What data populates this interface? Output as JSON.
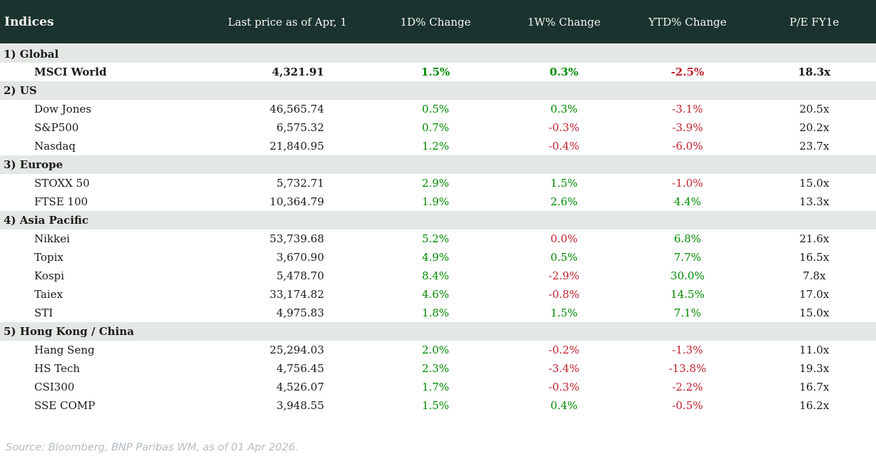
{
  "header": {
    "columns": [
      "Indices",
      "Last price as of Apr, 1",
      "1D% Change",
      "1W% Change",
      "YTD% Change",
      "P/E FY1e"
    ]
  },
  "sections": [
    {
      "label": "1) Global",
      "rows": [
        {
          "name": "MSCI World",
          "bold": true,
          "price": "4,321.91",
          "changes": [
            {
              "v": "1.5%",
              "c": "pos"
            },
            {
              "v": "0.3%",
              "c": "pos"
            },
            {
              "v": "-2.5%",
              "c": "neg"
            }
          ],
          "pe": "18.3x"
        }
      ]
    },
    {
      "label": "2) US",
      "rows": [
        {
          "name": "Dow Jones",
          "bold": false,
          "price": "46,565.74",
          "changes": [
            {
              "v": "0.5%",
              "c": "pos"
            },
            {
              "v": "0.3%",
              "c": "pos"
            },
            {
              "v": "-3.1%",
              "c": "neg"
            }
          ],
          "pe": "20.5x"
        },
        {
          "name": "S&P500",
          "bold": false,
          "price": "6,575.32",
          "changes": [
            {
              "v": "0.7%",
              "c": "pos"
            },
            {
              "v": "-0.3%",
              "c": "neg"
            },
            {
              "v": "-3.9%",
              "c": "neg"
            }
          ],
          "pe": "20.2x"
        },
        {
          "name": "Nasdaq",
          "bold": false,
          "price": "21,840.95",
          "changes": [
            {
              "v": "1.2%",
              "c": "pos"
            },
            {
              "v": "-0.4%",
              "c": "neg"
            },
            {
              "v": "-6.0%",
              "c": "neg"
            }
          ],
          "pe": "23.7x"
        }
      ]
    },
    {
      "label": "3) Europe",
      "rows": [
        {
          "name": "STOXX 50",
          "bold": false,
          "price": "5,732.71",
          "changes": [
            {
              "v": "2.9%",
              "c": "pos"
            },
            {
              "v": "1.5%",
              "c": "pos"
            },
            {
              "v": "-1.0%",
              "c": "neg"
            }
          ],
          "pe": "15.0x"
        },
        {
          "name": "FTSE 100",
          "bold": false,
          "price": "10,364.79",
          "changes": [
            {
              "v": "1.9%",
              "c": "pos"
            },
            {
              "v": "2.6%",
              "c": "pos"
            },
            {
              "v": "4.4%",
              "c": "pos"
            }
          ],
          "pe": "13.3x"
        }
      ]
    },
    {
      "label": "4) Asia Pacific",
      "rows": [
        {
          "name": "Nikkei",
          "bold": false,
          "price": "53,739.68",
          "changes": [
            {
              "v": "5.2%",
              "c": "pos"
            },
            {
              "v": "0.0%",
              "c": "neg"
            },
            {
              "v": "6.8%",
              "c": "pos"
            }
          ],
          "pe": "21.6x"
        },
        {
          "name": "Topix",
          "bold": false,
          "price": "3,670.90",
          "changes": [
            {
              "v": "4.9%",
              "c": "pos"
            },
            {
              "v": "0.5%",
              "c": "pos"
            },
            {
              "v": "7.7%",
              "c": "pos"
            }
          ],
          "pe": "16.5x"
        },
        {
          "name": "Kospi",
          "bold": false,
          "price": "5,478.70",
          "changes": [
            {
              "v": "8.4%",
              "c": "pos"
            },
            {
              "v": "-2.9%",
              "c": "neg"
            },
            {
              "v": "30.0%",
              "c": "pos"
            }
          ],
          "pe": "7.8x"
        },
        {
          "name": "Taiex",
          "bold": false,
          "price": "33,174.82",
          "changes": [
            {
              "v": "4.6%",
              "c": "pos"
            },
            {
              "v": "-0.8%",
              "c": "neg"
            },
            {
              "v": "14.5%",
              "c": "pos"
            }
          ],
          "pe": "17.0x"
        },
        {
          "name": "STI",
          "bold": false,
          "price": "4,975.83",
          "changes": [
            {
              "v": "1.8%",
              "c": "pos"
            },
            {
              "v": "1.5%",
              "c": "pos"
            },
            {
              "v": "7.1%",
              "c": "pos"
            }
          ],
          "pe": "15.0x"
        }
      ]
    },
    {
      "label": "5) Hong Kong / China",
      "rows": [
        {
          "name": "Hang Seng",
          "bold": false,
          "price": "25,294.03",
          "changes": [
            {
              "v": "2.0%",
              "c": "pos"
            },
            {
              "v": "-0.2%",
              "c": "neg"
            },
            {
              "v": "-1.3%",
              "c": "neg"
            }
          ],
          "pe": "11.0x"
        },
        {
          "name": "HS Tech",
          "bold": false,
          "price": "4,756.45",
          "changes": [
            {
              "v": "2.3%",
              "c": "pos"
            },
            {
              "v": "-3.4%",
              "c": "neg"
            },
            {
              "v": "-13.8%",
              "c": "neg"
            }
          ],
          "pe": "19.3x"
        },
        {
          "name": "CSI300",
          "bold": false,
          "price": "4,526.07",
          "changes": [
            {
              "v": "1.7%",
              "c": "pos"
            },
            {
              "v": "-0.3%",
              "c": "neg"
            },
            {
              "v": "-2.2%",
              "c": "neg"
            }
          ],
          "pe": "16.7x"
        },
        {
          "name": "SSE COMP",
          "bold": false,
          "price": "3,948.55",
          "changes": [
            {
              "v": "1.5%",
              "c": "pos"
            },
            {
              "v": "0.4%",
              "c": "pos"
            },
            {
              "v": "-0.5%",
              "c": "neg"
            }
          ],
          "pe": "16.2x"
        }
      ]
    }
  ],
  "footer": {
    "source": "Source: Bloomberg, BNP Paribas WM, as of 01 Apr 2026."
  },
  "colors": {
    "header_bg": "#1b332e",
    "section_bg": "#e3e8e4",
    "positive": "#008a00",
    "negative": "#c2202e"
  }
}
